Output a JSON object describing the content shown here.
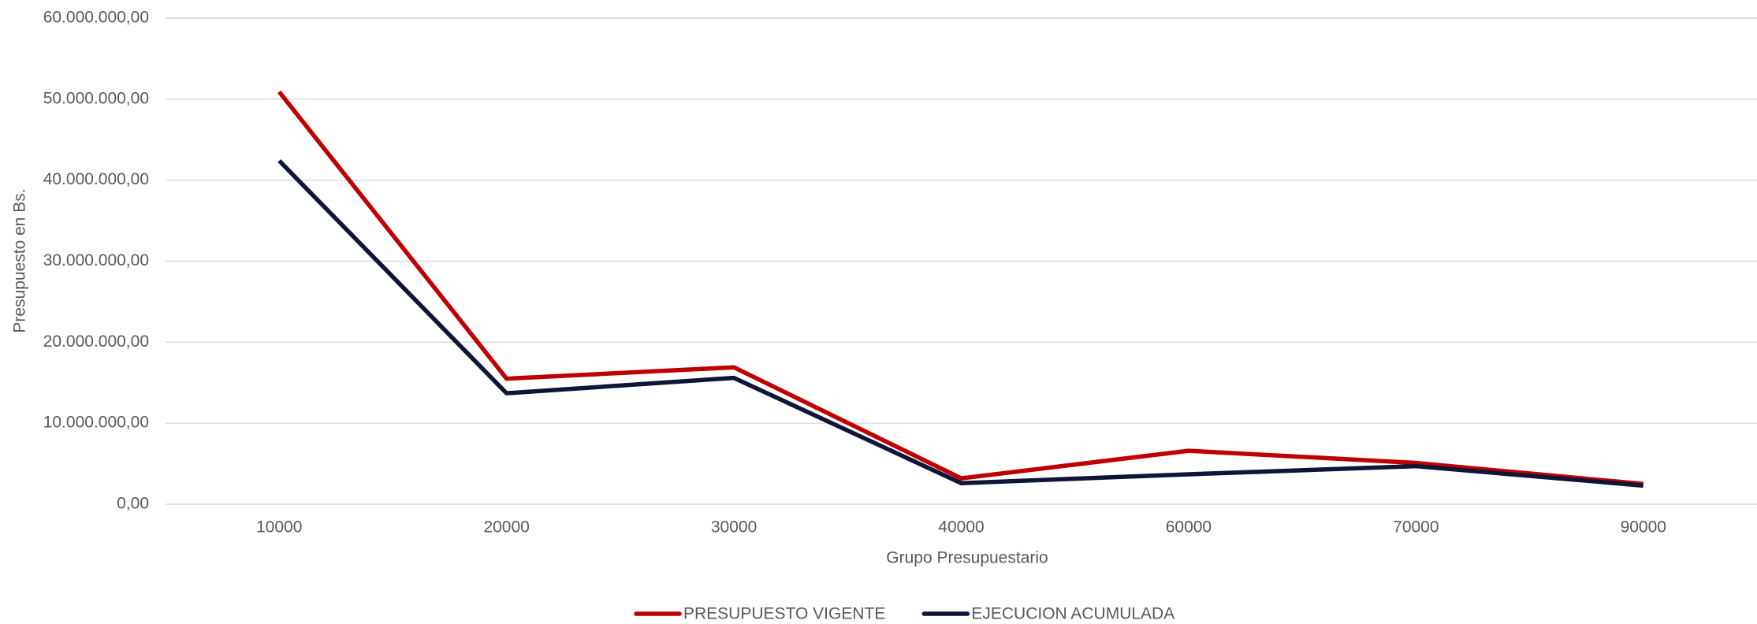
{
  "chart_data": {
    "type": "line",
    "x_label": "Grupo Presupuestario",
    "y_label": "Presupuesto en Bs.",
    "categories": [
      "10000",
      "20000",
      "30000",
      "40000",
      "60000",
      "70000",
      "90000"
    ],
    "series": [
      {
        "name": "PRESUPUESTO VIGENTE",
        "color": "#c00000",
        "values": [
          50900000,
          15500000,
          16900000,
          3200000,
          6600000,
          5100000,
          2500000
        ]
      },
      {
        "name": "EJECUCION ACUMULADA",
        "color": "#0d1538",
        "values": [
          42400000,
          13700000,
          15600000,
          2600000,
          3700000,
          4700000,
          2300000
        ]
      }
    ],
    "ylim": [
      0,
      60000000
    ],
    "yticks": [
      {
        "value": 0,
        "label": "0,00"
      },
      {
        "value": 10000000,
        "label": "10.000.000,00"
      },
      {
        "value": 20000000,
        "label": "20.000.000,00"
      },
      {
        "value": 30000000,
        "label": "30.000.000,00"
      },
      {
        "value": 40000000,
        "label": "40.000.000,00"
      },
      {
        "value": 50000000,
        "label": "50.000.000,00"
      },
      {
        "value": 60000000,
        "label": "60.000.000,00"
      }
    ],
    "grid": true,
    "legend": "bottom"
  }
}
